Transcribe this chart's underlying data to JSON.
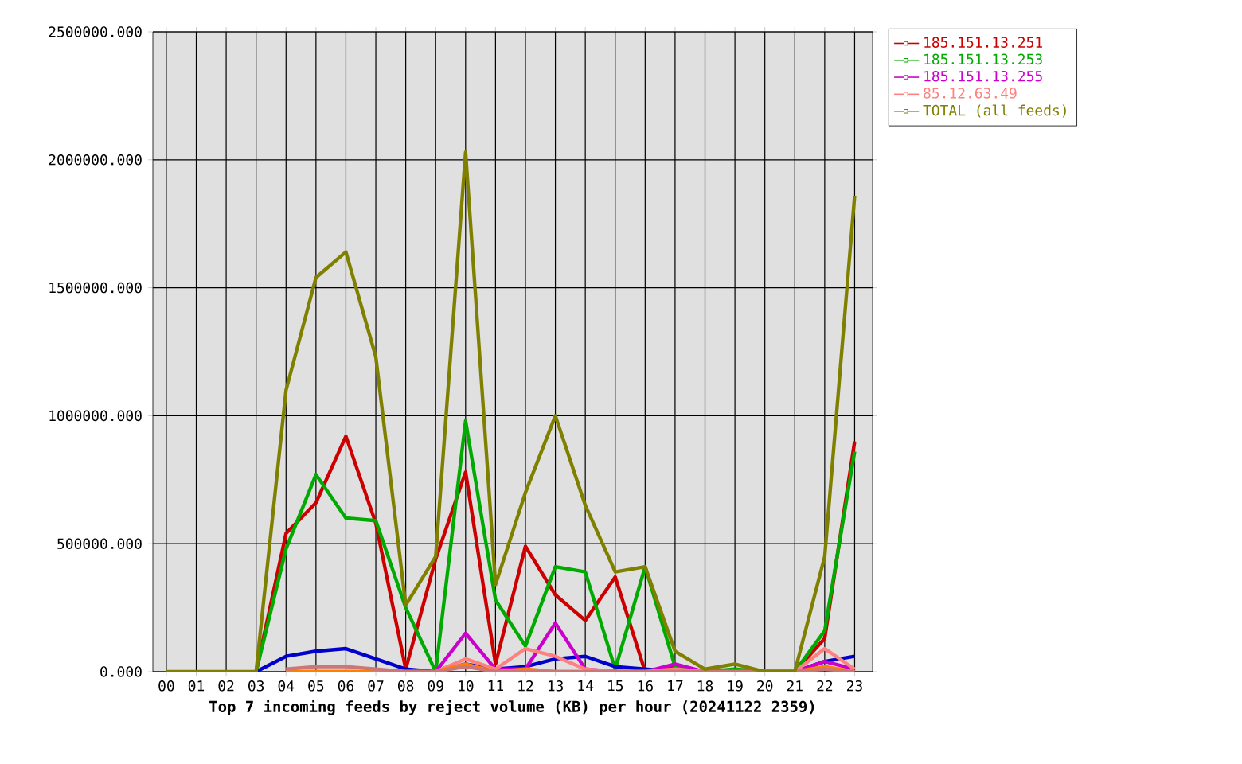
{
  "chart_data": {
    "type": "line",
    "title": "Top 7 incoming feeds by reject volume (KB) per hour (20241122 2359)",
    "categories": [
      "00",
      "01",
      "02",
      "03",
      "04",
      "05",
      "06",
      "07",
      "08",
      "09",
      "10",
      "11",
      "12",
      "13",
      "14",
      "15",
      "16",
      "17",
      "18",
      "19",
      "20",
      "21",
      "22",
      "23"
    ],
    "ylim": [
      0,
      2500000
    ],
    "yticks": [
      {
        "value": 0,
        "label": "0.000"
      },
      {
        "value": 500000,
        "label": "500000.000"
      },
      {
        "value": 1000000,
        "label": "1000000.000"
      },
      {
        "value": 1500000,
        "label": "1500000.000"
      },
      {
        "value": 2000000,
        "label": "2000000.000"
      },
      {
        "value": 2500000,
        "label": "2500000.000"
      }
    ],
    "grid": true,
    "legend": "right",
    "marker": "none",
    "line_style": "solid",
    "series": [
      {
        "name": "185.151.13.251",
        "color": "#cc0000",
        "values": [
          null,
          null,
          null,
          0,
          540000,
          660000,
          920000,
          580000,
          10000,
          440000,
          780000,
          30000,
          490000,
          300000,
          200000,
          370000,
          0,
          20000,
          0,
          0,
          0,
          0,
          130000,
          900000
        ]
      },
      {
        "name": "185.151.13.253",
        "color": "#00aa00",
        "values": [
          null,
          null,
          null,
          0,
          480000,
          770000,
          600000,
          590000,
          250000,
          0,
          980000,
          280000,
          100000,
          410000,
          390000,
          10000,
          410000,
          20000,
          0,
          10000,
          0,
          0,
          160000,
          860000
        ]
      },
      {
        "color": "#0000cc",
        "values": [
          null,
          null,
          null,
          0,
          60000,
          80000,
          90000,
          50000,
          10000,
          0,
          30000,
          10000,
          20000,
          50000,
          60000,
          20000,
          10000,
          0,
          0,
          0,
          0,
          0,
          40000,
          60000
        ]
      },
      {
        "name": "185.151.13.255",
        "color": "#cc00cc",
        "values": [
          null,
          null,
          null,
          null,
          null,
          null,
          null,
          null,
          null,
          0,
          150000,
          10000,
          10000,
          190000,
          10000,
          0,
          0,
          30000,
          0,
          0,
          0,
          0,
          40000,
          10000
        ]
      },
      {
        "name": "85.12.63.49",
        "color": "#ff8080",
        "values": [
          null,
          null,
          null,
          null,
          0,
          0,
          0,
          0,
          0,
          0,
          50000,
          10000,
          90000,
          60000,
          10000,
          0,
          0,
          10000,
          0,
          0,
          0,
          0,
          90000,
          10000
        ]
      },
      {
        "color": "#ff8000",
        "values": [
          null,
          null,
          null,
          null,
          0,
          0,
          0,
          0,
          0,
          0,
          30000,
          0,
          10000,
          0,
          0,
          0,
          0,
          0,
          0,
          0,
          0,
          0,
          20000,
          0
        ]
      },
      {
        "color": "#cc7777",
        "values": [
          null,
          null,
          null,
          null,
          10000,
          20000,
          20000,
          10000,
          0,
          0,
          20000,
          0,
          0,
          0,
          0,
          0,
          0,
          0,
          0,
          0,
          0,
          0,
          10000,
          0
        ]
      },
      {
        "name": "TOTAL (all feeds)",
        "color": "#808000",
        "values": [
          0,
          0,
          0,
          0,
          1100000,
          1540000,
          1640000,
          1230000,
          260000,
          450000,
          2030000,
          340000,
          700000,
          1000000,
          650000,
          390000,
          410000,
          80000,
          10000,
          30000,
          0,
          0,
          450000,
          1860000
        ]
      }
    ]
  }
}
